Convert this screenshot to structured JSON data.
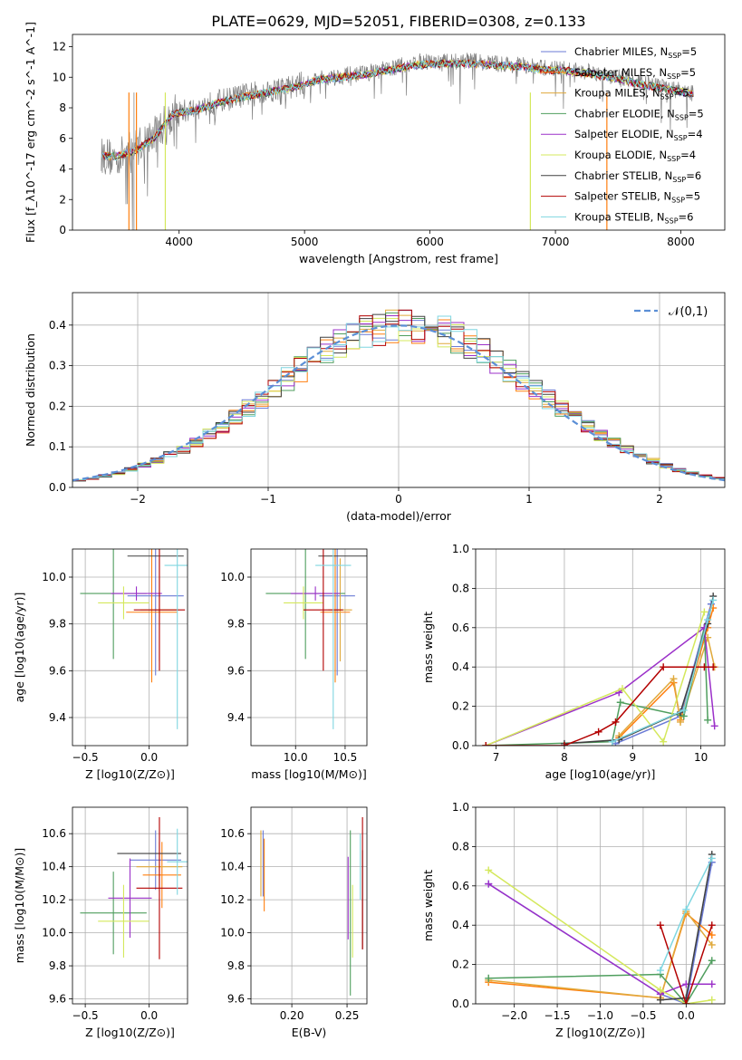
{
  "title": "PLATE=0629, MJD=52051, FIBERID=0308, z=0.133",
  "colors": [
    "#6b7bd6",
    "#ff7f0e",
    "#e0a93b",
    "#4f9e5e",
    "#9b30c9",
    "#d4e85c",
    "#404040",
    "#b30000",
    "#7fd6e0"
  ],
  "models": [
    {
      "name": "Chabrier MILES",
      "nssp": "5",
      "color": "#6b7bd6"
    },
    {
      "name": "Salpeter MILES",
      "nssp": "5",
      "color": "#ff7f0e"
    },
    {
      "name": "Kroupa MILES",
      "nssp": "5",
      "color": "#e0a93b"
    },
    {
      "name": "Chabrier ELODIE",
      "nssp": "5",
      "color": "#4f9e5e"
    },
    {
      "name": "Salpeter ELODIE",
      "nssp": "4",
      "color": "#9b30c9"
    },
    {
      "name": "Kroupa ELODIE",
      "nssp": "4",
      "color": "#d4e85c"
    },
    {
      "name": "Chabrier STELIB",
      "nssp": "6",
      "color": "#404040"
    },
    {
      "name": "Salpeter STELIB",
      "nssp": "5",
      "color": "#b30000"
    },
    {
      "name": "Kroupa STELIB",
      "nssp": "6",
      "color": "#7fd6e0"
    }
  ],
  "chart_data": [
    {
      "id": "spectrum",
      "type": "line",
      "xlabel": "wavelength [Angstrom, rest frame]",
      "ylabel": "Flux [f_λ10^-17 erg cm^-2 s^-1 A^-1]",
      "xlim": [
        3150,
        8350
      ],
      "ylim": [
        0,
        12.8
      ],
      "xticks": [
        4000,
        5000,
        6000,
        7000,
        8000
      ],
      "yticks": [
        0,
        2,
        4,
        6,
        8,
        10,
        12
      ],
      "legend": "top-right",
      "data_color": "#808080",
      "data_continuum": [
        [
          3380,
          4.9
        ],
        [
          3500,
          4.7
        ],
        [
          3650,
          5.4
        ],
        [
          3800,
          6.2
        ],
        [
          3950,
          7.6
        ],
        [
          4100,
          7.9
        ],
        [
          4300,
          8.4
        ],
        [
          4500,
          8.8
        ],
        [
          4700,
          9.1
        ],
        [
          4900,
          9.4
        ],
        [
          5100,
          9.9
        ],
        [
          5300,
          10.1
        ],
        [
          5500,
          10.3
        ],
        [
          5700,
          10.6
        ],
        [
          5900,
          11.0
        ],
        [
          6100,
          11.0
        ],
        [
          6300,
          11.1
        ],
        [
          6500,
          10.9
        ],
        [
          6700,
          10.8
        ],
        [
          6900,
          10.6
        ],
        [
          7100,
          10.5
        ],
        [
          7300,
          10.3
        ],
        [
          7500,
          10.0
        ],
        [
          7700,
          9.6
        ],
        [
          7900,
          9.3
        ],
        [
          8100,
          8.9
        ]
      ],
      "model_continuum": [
        [
          3380,
          4.9
        ],
        [
          3500,
          4.8
        ],
        [
          3650,
          5.2
        ],
        [
          3800,
          6.0
        ],
        [
          3950,
          7.6
        ],
        [
          4100,
          7.8
        ],
        [
          4300,
          8.3
        ],
        [
          4500,
          8.7
        ],
        [
          4700,
          9.0
        ],
        [
          4900,
          9.3
        ],
        [
          5100,
          9.8
        ],
        [
          5300,
          10.0
        ],
        [
          5500,
          10.2
        ],
        [
          5700,
          10.5
        ],
        [
          5900,
          10.8
        ],
        [
          6100,
          10.9
        ],
        [
          6300,
          10.9
        ],
        [
          6500,
          10.8
        ],
        [
          6700,
          10.7
        ],
        [
          6900,
          10.5
        ],
        [
          7100,
          10.4
        ],
        [
          7300,
          10.2
        ],
        [
          7500,
          9.9
        ],
        [
          7700,
          9.5
        ],
        [
          7900,
          9.2
        ],
        [
          8100,
          8.9
        ]
      ]
    },
    {
      "id": "residuals",
      "type": "line",
      "xlabel": "(data-model)/error",
      "ylabel": "Normed distribution",
      "xlim": [
        -2.5,
        2.5
      ],
      "ylim": [
        0,
        0.48
      ],
      "xticks": [
        -2,
        -1,
        0,
        1,
        2
      ],
      "yticks": [
        0.0,
        0.1,
        0.2,
        0.3,
        0.4
      ],
      "grid": true,
      "legend": "top-right",
      "reference": {
        "name": "𝒩(0,1)",
        "color": "#5b8fd6",
        "style": "dashed"
      }
    },
    {
      "id": "age_vs_Z",
      "type": "scatter",
      "xlabel": "Z [log10(Z/Z⊙)]",
      "ylabel": "age  [log10(age/yr)]",
      "xlim": [
        -0.6,
        0.3
      ],
      "ylim": [
        9.28,
        10.12
      ],
      "xticks": [
        -0.5,
        0.0
      ],
      "yticks": [
        9.4,
        9.6,
        9.8,
        10.0
      ],
      "grid": true,
      "points": [
        {
          "x": 0.05,
          "y": 9.92,
          "xerr": 0.22,
          "yerr": 0.34,
          "color": "#6b7bd6"
        },
        {
          "x": 0.02,
          "y": 9.85,
          "xerr": 0.2,
          "yerr": 0.3,
          "color": "#ff7f0e"
        },
        {
          "x": 0.08,
          "y": 9.86,
          "xerr": 0.15,
          "yerr": 0.22,
          "color": "#e0a93b"
        },
        {
          "x": -0.28,
          "y": 9.93,
          "xerr": 0.26,
          "yerr": 0.28,
          "color": "#4f9e5e"
        },
        {
          "x": -0.1,
          "y": 9.93,
          "xerr": 0.2,
          "yerr": 0.03,
          "color": "#9b30c9"
        },
        {
          "x": -0.2,
          "y": 9.89,
          "xerr": 0.2,
          "yerr": 0.07,
          "color": "#d4e85c"
        },
        {
          "x": 0.05,
          "y": 10.09,
          "xerr": 0.22,
          "yerr": 0.0,
          "color": "#404040"
        },
        {
          "x": 0.08,
          "y": 9.86,
          "xerr": 0.2,
          "yerr": 0.26,
          "color": "#b30000"
        },
        {
          "x": 0.22,
          "y": 10.05,
          "xerr": 0.1,
          "yerr": 0.7,
          "color": "#7fd6e0"
        }
      ]
    },
    {
      "id": "age_vs_mass",
      "type": "scatter",
      "xlabel": "mass [log10(M/M⊙)]",
      "ylabel": "",
      "xlim": [
        9.55,
        10.72
      ],
      "ylim": [
        9.28,
        10.12
      ],
      "xticks": [
        10.0,
        10.5
      ],
      "yticks": [
        9.4,
        9.6,
        9.8,
        10.0
      ],
      "grid": true,
      "points": [
        {
          "x": 10.42,
          "y": 9.92,
          "xerr": 0.18,
          "yerr": 0.34,
          "color": "#6b7bd6"
        },
        {
          "x": 10.4,
          "y": 9.85,
          "xerr": 0.15,
          "yerr": 0.3,
          "color": "#ff7f0e"
        },
        {
          "x": 10.45,
          "y": 9.86,
          "xerr": 0.12,
          "yerr": 0.22,
          "color": "#e0a93b"
        },
        {
          "x": 10.1,
          "y": 9.93,
          "xerr": 0.4,
          "yerr": 0.28,
          "color": "#4f9e5e"
        },
        {
          "x": 10.2,
          "y": 9.93,
          "xerr": 0.25,
          "yerr": 0.03,
          "color": "#9b30c9"
        },
        {
          "x": 10.08,
          "y": 9.89,
          "xerr": 0.2,
          "yerr": 0.07,
          "color": "#d4e85c"
        },
        {
          "x": 10.48,
          "y": 10.09,
          "xerr": 0.25,
          "yerr": 0.0,
          "color": "#404040"
        },
        {
          "x": 10.28,
          "y": 9.86,
          "xerr": 0.2,
          "yerr": 0.26,
          "color": "#b30000"
        },
        {
          "x": 10.38,
          "y": 10.05,
          "xerr": 0.18,
          "yerr": 0.7,
          "color": "#7fd6e0"
        }
      ]
    },
    {
      "id": "weight_vs_age",
      "type": "line",
      "xlabel": "age  [log10(age/yr)]",
      "ylabel": "mass weight",
      "xlim": [
        6.7,
        10.35
      ],
      "ylim": [
        0,
        1
      ],
      "xticks": [
        7,
        8,
        9,
        10
      ],
      "yticks": [
        0.0,
        0.2,
        0.4,
        0.6,
        0.8,
        1.0
      ],
      "grid": true,
      "series": [
        {
          "color": "#6b7bd6",
          "points": [
            [
              8.75,
              0.01
            ],
            [
              9.7,
              0.15
            ],
            [
              10.05,
              0.6
            ],
            [
              10.15,
              0.72
            ]
          ]
        },
        {
          "color": "#ff7f0e",
          "points": [
            [
              8.8,
              0.04
            ],
            [
              9.6,
              0.32
            ],
            [
              9.7,
              0.13
            ],
            [
              10.1,
              0.6
            ],
            [
              10.18,
              0.7
            ]
          ]
        },
        {
          "color": "#e0a93b",
          "points": [
            [
              8.8,
              0.05
            ],
            [
              9.6,
              0.34
            ],
            [
              9.7,
              0.12
            ],
            [
              10.1,
              0.55
            ],
            [
              10.2,
              0.4
            ]
          ]
        },
        {
          "color": "#4f9e5e",
          "points": [
            [
              6.85,
              0.0
            ],
            [
              8.7,
              0.02
            ],
            [
              8.82,
              0.22
            ],
            [
              9.75,
              0.15
            ],
            [
              10.05,
              0.6
            ],
            [
              10.1,
              0.13
            ]
          ]
        },
        {
          "color": "#9b30c9",
          "points": [
            [
              6.85,
              0.0
            ],
            [
              8.8,
              0.27
            ],
            [
              10.05,
              0.6
            ],
            [
              10.2,
              0.1
            ]
          ]
        },
        {
          "color": "#d4e85c",
          "points": [
            [
              6.85,
              0.0
            ],
            [
              8.85,
              0.29
            ],
            [
              9.45,
              0.02
            ],
            [
              10.05,
              0.68
            ]
          ]
        },
        {
          "color": "#404040",
          "points": [
            [
              8.0,
              0.01
            ],
            [
              8.8,
              0.03
            ],
            [
              9.7,
              0.17
            ],
            [
              10.1,
              0.62
            ],
            [
              10.18,
              0.76
            ]
          ]
        },
        {
          "color": "#b30000",
          "points": [
            [
              6.85,
              0.0
            ],
            [
              8.0,
              0.0
            ],
            [
              8.5,
              0.07
            ],
            [
              8.75,
              0.12
            ],
            [
              9.45,
              0.4
            ],
            [
              10.05,
              0.4
            ],
            [
              10.18,
              0.4
            ]
          ]
        },
        {
          "color": "#7fd6e0",
          "points": [
            [
              8.7,
              0.02
            ],
            [
              9.75,
              0.18
            ],
            [
              10.1,
              0.64
            ],
            [
              10.18,
              0.74
            ]
          ]
        }
      ]
    },
    {
      "id": "mass_vs_Z",
      "type": "scatter",
      "xlabel": "Z [log10(Z/Z⊙)]",
      "ylabel": "mass [log10(M/M⊙)]",
      "xlim": [
        -0.6,
        0.3
      ],
      "ylim": [
        9.57,
        10.76
      ],
      "xticks": [
        -0.5,
        0.0
      ],
      "yticks": [
        9.6,
        9.8,
        10.0,
        10.2,
        10.4,
        10.6
      ],
      "grid": true,
      "points": [
        {
          "x": 0.05,
          "y": 10.44,
          "xerr": 0.2,
          "yerr": 0.18,
          "color": "#6b7bd6"
        },
        {
          "x": 0.1,
          "y": 10.35,
          "xerr": 0.15,
          "yerr": 0.2,
          "color": "#ff7f0e"
        },
        {
          "x": 0.08,
          "y": 10.4,
          "xerr": 0.18,
          "yerr": 0.15,
          "color": "#e0a93b"
        },
        {
          "x": -0.28,
          "y": 10.12,
          "xerr": 0.26,
          "yerr": 0.25,
          "color": "#4f9e5e"
        },
        {
          "x": -0.15,
          "y": 10.21,
          "xerr": 0.17,
          "yerr": 0.24,
          "color": "#9b30c9"
        },
        {
          "x": -0.2,
          "y": 10.07,
          "xerr": 0.2,
          "yerr": 0.22,
          "color": "#d4e85c"
        },
        {
          "x": 0.0,
          "y": 10.48,
          "xerr": 0.25,
          "yerr": 0.0,
          "color": "#404040"
        },
        {
          "x": 0.08,
          "y": 10.27,
          "xerr": 0.18,
          "yerr": 0.43,
          "color": "#b30000"
        },
        {
          "x": 0.22,
          "y": 10.43,
          "xerr": 0.08,
          "yerr": 0.2,
          "color": "#7fd6e0"
        }
      ]
    },
    {
      "id": "mass_vs_ebv",
      "type": "scatter",
      "xlabel": "E(B-V)",
      "ylabel": "",
      "xlim": [
        0.163,
        0.268
      ],
      "ylim": [
        9.57,
        10.76
      ],
      "xticks": [
        0.2,
        0.25
      ],
      "yticks": [
        9.6,
        9.8,
        10.0,
        10.2,
        10.4,
        10.6
      ],
      "grid": true,
      "points": [
        {
          "x": 0.174,
          "y": 10.42,
          "yerr": 0.2,
          "color": "#6b7bd6"
        },
        {
          "x": 0.175,
          "y": 10.35,
          "yerr": 0.22,
          "color": "#ff7f0e"
        },
        {
          "x": 0.172,
          "y": 10.42,
          "yerr": 0.2,
          "color": "#e0a93b"
        },
        {
          "x": 0.253,
          "y": 10.12,
          "yerr": 0.5,
          "color": "#4f9e5e"
        },
        {
          "x": 0.251,
          "y": 10.21,
          "yerr": 0.25,
          "color": "#9b30c9"
        },
        {
          "x": 0.255,
          "y": 10.07,
          "yerr": 0.22,
          "color": "#d4e85c"
        },
        {
          "x": 0.264,
          "y": 10.2,
          "yerr": 0.3,
          "color": "#404040"
        },
        {
          "x": 0.264,
          "y": 10.3,
          "yerr": 0.4,
          "color": "#b30000"
        },
        {
          "x": 0.262,
          "y": 10.4,
          "yerr": 0.2,
          "color": "#7fd6e0"
        }
      ]
    },
    {
      "id": "weight_vs_Z",
      "type": "line",
      "xlabel": "Z [log10(Z/Z⊙)]",
      "ylabel": "mass weight",
      "xlim": [
        -2.45,
        0.45
      ],
      "ylim": [
        0,
        1
      ],
      "xticks": [
        -2.0,
        -1.5,
        -1.0,
        -0.5,
        0.0
      ],
      "yticks": [
        0.0,
        0.2,
        0.4,
        0.6,
        0.8,
        1.0
      ],
      "grid": true,
      "series": [
        {
          "color": "#6b7bd6",
          "points": [
            [
              -2.3,
              0.61
            ],
            [
              -0.3,
              0.05
            ],
            [
              0.0,
              0.0
            ],
            [
              0.3,
              0.72
            ]
          ]
        },
        {
          "color": "#ff7f0e",
          "points": [
            [
              -2.3,
              0.11
            ],
            [
              -0.3,
              0.03
            ],
            [
              0.0,
              0.46
            ],
            [
              0.3,
              0.35
            ]
          ]
        },
        {
          "color": "#e0a93b",
          "points": [
            [
              -2.3,
              0.12
            ],
            [
              -0.3,
              0.03
            ],
            [
              0.0,
              0.47
            ],
            [
              0.3,
              0.3
            ]
          ]
        },
        {
          "color": "#4f9e5e",
          "points": [
            [
              -2.3,
              0.13
            ],
            [
              -0.3,
              0.15
            ],
            [
              0.0,
              0.0
            ],
            [
              0.3,
              0.22
            ]
          ]
        },
        {
          "color": "#9b30c9",
          "points": [
            [
              -2.3,
              0.61
            ],
            [
              -0.3,
              0.05
            ],
            [
              0.0,
              0.1
            ],
            [
              0.3,
              0.1
            ]
          ]
        },
        {
          "color": "#d4e85c",
          "points": [
            [
              -2.3,
              0.68
            ],
            [
              -0.3,
              0.07
            ],
            [
              0.0,
              0.0
            ],
            [
              0.3,
              0.02
            ]
          ]
        },
        {
          "color": "#404040",
          "points": [
            [
              -0.3,
              0.02
            ],
            [
              0.0,
              0.03
            ],
            [
              0.3,
              0.76
            ]
          ]
        },
        {
          "color": "#b30000",
          "points": [
            [
              -0.3,
              0.4
            ],
            [
              0.0,
              0.0
            ],
            [
              0.3,
              0.4
            ]
          ]
        },
        {
          "color": "#7fd6e0",
          "points": [
            [
              -0.3,
              0.17
            ],
            [
              0.0,
              0.48
            ],
            [
              0.3,
              0.74
            ]
          ]
        }
      ]
    }
  ]
}
